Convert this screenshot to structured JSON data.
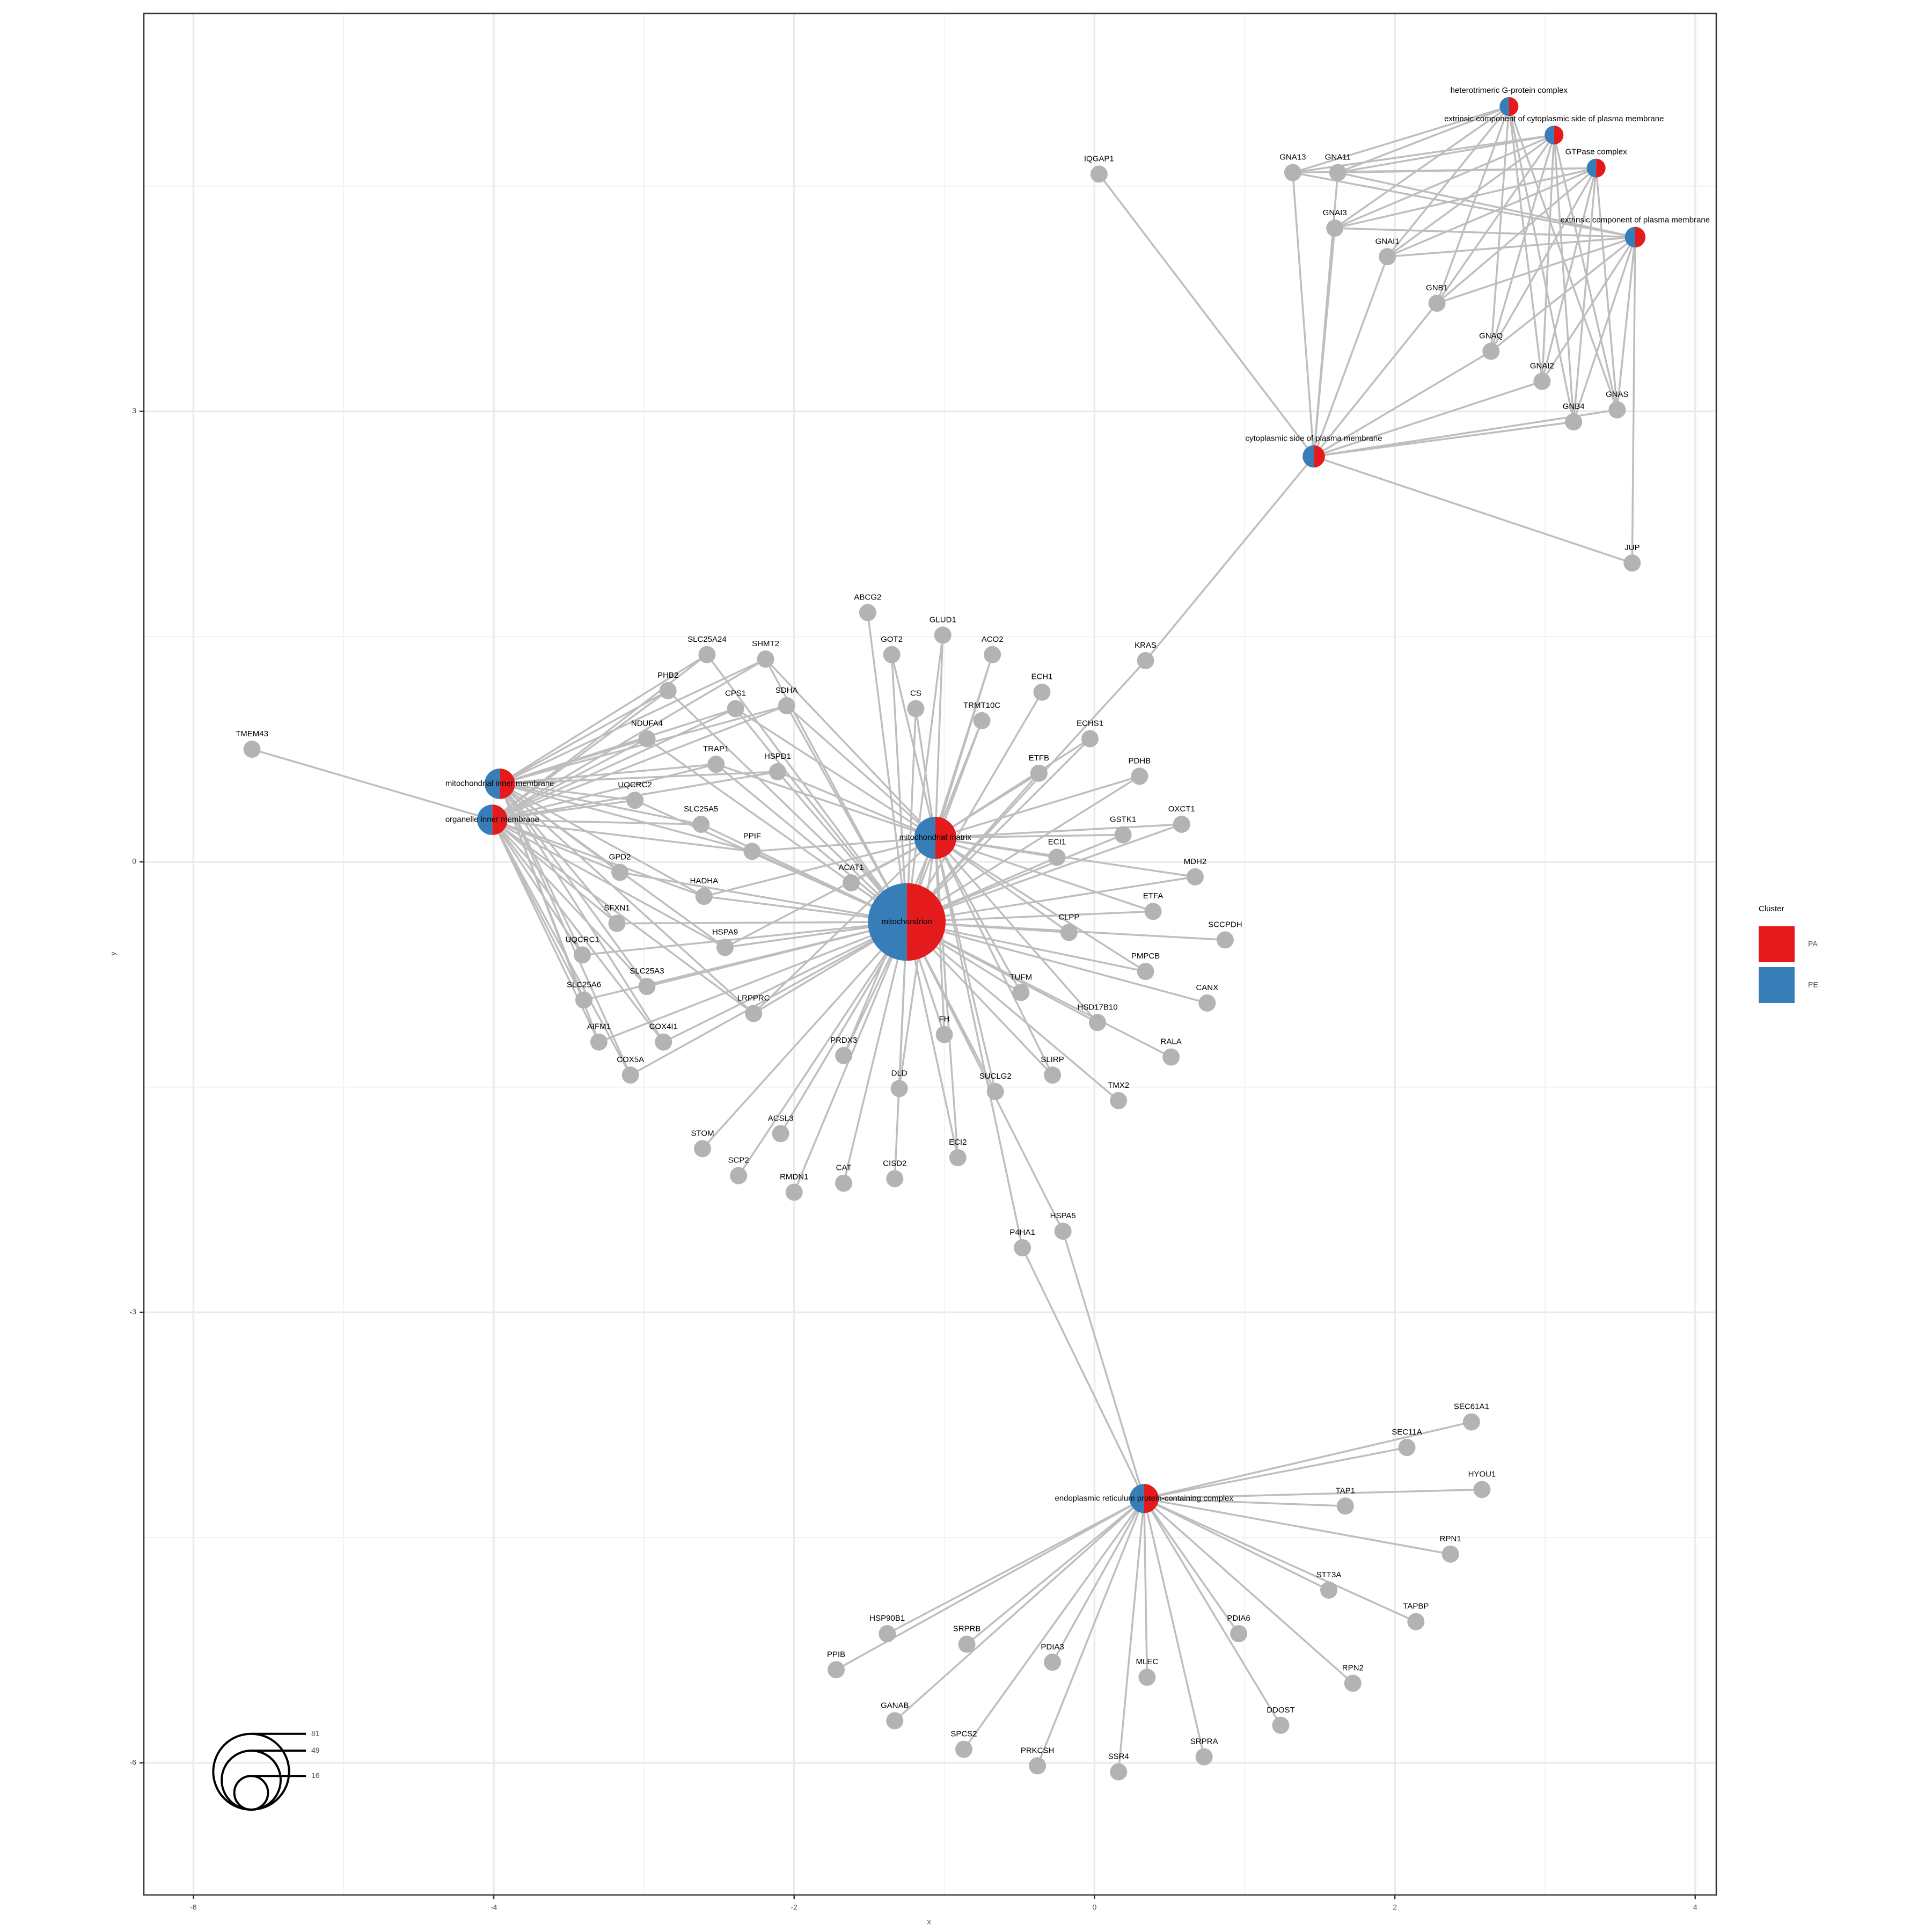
{
  "chart_data": {
    "type": "network",
    "x_label": "x",
    "y_label": "y",
    "xlim": [
      -6.33,
      4.14
    ],
    "ylim": [
      -6.88,
      5.65
    ],
    "xticks": [
      -6,
      -4,
      -2,
      0,
      2,
      4
    ],
    "yticks": [
      -6,
      -3,
      0,
      3
    ],
    "grid": true,
    "minor_grid": true,
    "legend_title": "Cluster",
    "series": [
      {
        "name": "PA",
        "color": "#E41A1C"
      },
      {
        "name": "PE",
        "color": "#377EB8"
      }
    ],
    "node_color": "#B3B3B3",
    "edge_color": "#BEBEBE",
    "size_legend": [
      81,
      49,
      16
    ],
    "categories": [
      {
        "label": "mitochondrion",
        "x": -1.25,
        "y": -0.4,
        "size": 85,
        "values": [
          50,
          50
        ],
        "links": [
          "SLC25A24",
          "SHMT2",
          "PHB2",
          "NDUFA4",
          "CPS1",
          "SDHA",
          "TRAP1",
          "HSPD1",
          "UQCRC2",
          "SLC25A5",
          "PPIF",
          "GPD2",
          "HADHA",
          "ACAT1",
          "SFXN1",
          "HSPA9",
          "UQCRC1",
          "SLC25A3",
          "SLC25A6",
          "LRPPRC",
          "COX4I1",
          "AIFM1",
          "COX5A",
          "ABCG2",
          "GOT2",
          "GLUD1",
          "ACO2",
          "CS",
          "TRMT10C",
          "ECH1",
          "ECHS1",
          "ETFB",
          "PDHB",
          "GSTK1",
          "OXCT1",
          "ECI1",
          "MDH2",
          "ETFA",
          "SCCPDH",
          "CLPP",
          "PMPCB",
          "TUFM",
          "CANX",
          "HSD17B10",
          "FH",
          "RALA",
          "SLIRP",
          "SUCLG2",
          "TMX2",
          "PRDX3",
          "DLD",
          "ECI2",
          "STOM",
          "ACSL3",
          "SCP2",
          "CAT",
          "CISD2",
          "RMDN1",
          "KRAS",
          "HSPA5"
        ]
      },
      {
        "label": "mitochondrial matrix",
        "x": -1.06,
        "y": 0.16,
        "size": 25,
        "values": [
          50,
          50
        ],
        "links": [
          "SHMT2",
          "CPS1",
          "SDHA",
          "TRAP1",
          "HSPD1",
          "HADHA",
          "HSPA9",
          "LRPPRC",
          "ACAT1",
          "PPIF",
          "GOT2",
          "GLUD1",
          "ACO2",
          "CS",
          "TRMT10C",
          "ECHS1",
          "ETFB",
          "PDHB",
          "GSTK1",
          "OXCT1",
          "ECI1",
          "MDH2",
          "ETFA",
          "CLPP",
          "PMPCB",
          "TUFM",
          "HSD17B10",
          "FH",
          "SLIRP",
          "SUCLG2",
          "PRDX3",
          "DLD",
          "ECI2",
          "P4HA1"
        ]
      },
      {
        "label": "mitochondrial inner membrane",
        "x": -3.96,
        "y": 0.52,
        "size": 13,
        "values": [
          50,
          50
        ],
        "links": [
          "SLC25A24",
          "SHMT2",
          "PHB2",
          "NDUFA4",
          "CPS1",
          "SDHA",
          "TRAP1",
          "HSPD1",
          "UQCRC2",
          "SLC25A5",
          "PPIF",
          "GPD2",
          "HADHA",
          "SFXN1",
          "HSPA9",
          "UQCRC1",
          "SLC25A3",
          "SLC25A6",
          "LRPPRC",
          "COX4I1",
          "AIFM1",
          "COX5A"
        ]
      },
      {
        "label": "organelle inner membrane",
        "x": -4.01,
        "y": 0.28,
        "size": 13,
        "values": [
          50,
          50
        ],
        "links": [
          "TMEM43",
          "SLC25A24",
          "SHMT2",
          "PHB2",
          "NDUFA4",
          "CPS1",
          "SDHA",
          "TRAP1",
          "HSPD1",
          "UQCRC2",
          "SLC25A5",
          "PPIF",
          "GPD2",
          "HADHA",
          "SFXN1",
          "HSPA9",
          "UQCRC1",
          "SLC25A3",
          "SLC25A6",
          "LRPPRC",
          "COX4I1",
          "AIFM1",
          "COX5A"
        ]
      },
      {
        "label": "cytoplasmic side of plasma membrane",
        "x": 1.46,
        "y": 2.7,
        "size": 7,
        "values": [
          50,
          50
        ],
        "links": [
          "IQGAP1",
          "KRAS",
          "JUP",
          "GNA13",
          "GNA11",
          "GNAI3",
          "GNAI1",
          "GNB1",
          "GNAQ",
          "GNAI2",
          "GNB4",
          "GNAS"
        ]
      },
      {
        "label": "heterotrimeric G-protein complex",
        "x": 2.76,
        "y": 5.03,
        "size": 5,
        "values": [
          50,
          50
        ],
        "links": [
          "GNA13",
          "GNA11",
          "GNAI3",
          "GNAI1",
          "GNB1",
          "GNAQ",
          "GNAI2",
          "GNB4",
          "GNAS"
        ]
      },
      {
        "label": "extrinsic component of cytoplasmic side of plasma membrane",
        "x": 3.06,
        "y": 4.84,
        "size": 5,
        "values": [
          50,
          50
        ],
        "links": [
          "GNA13",
          "GNA11",
          "GNAI3",
          "GNAI1",
          "GNB1",
          "GNAQ",
          "GNAI2",
          "GNB4",
          "GNAS"
        ]
      },
      {
        "label": "GTPase complex",
        "x": 3.34,
        "y": 4.62,
        "size": 5,
        "values": [
          50,
          50
        ],
        "links": [
          "GNA13",
          "GNA11",
          "GNAI3",
          "GNAI1",
          "GNB1",
          "GNAQ",
          "GNAI2",
          "GNB4",
          "GNAS"
        ]
      },
      {
        "label": "extrinsic component of plasma membrane",
        "x": 3.6,
        "y": 4.16,
        "size": 6,
        "values": [
          50,
          50
        ],
        "links": [
          "GNA13",
          "GNA11",
          "GNAI3",
          "GNAI1",
          "GNB1",
          "GNAQ",
          "GNAI2",
          "GNB4",
          "GNAS",
          "JUP"
        ]
      },
      {
        "label": "endoplasmic reticulum protein-containing complex",
        "x": 0.33,
        "y": -4.24,
        "size": 12,
        "values": [
          50,
          50
        ],
        "links": [
          "SEC11A",
          "SEC61A1",
          "HYOU1",
          "TAP1",
          "RPN1",
          "STT3A",
          "TAPBP",
          "RPN2",
          "DDOST",
          "PDIA6",
          "SRPRA",
          "MLEC",
          "SSR4",
          "PRKCSH",
          "PDIA3",
          "SPCS2",
          "SRPRB",
          "GANAB",
          "HSP90B1",
          "PPIB",
          "HSPA5",
          "P4HA1"
        ]
      }
    ],
    "genes": [
      {
        "label": "TMEM43",
        "x": -5.61,
        "y": 0.75
      },
      {
        "label": "SLC25A24",
        "x": -2.58,
        "y": 1.38
      },
      {
        "label": "SHMT2",
        "x": -2.19,
        "y": 1.35
      },
      {
        "label": "PHB2",
        "x": -2.84,
        "y": 1.14
      },
      {
        "label": "NDUFA4",
        "x": -2.98,
        "y": 0.82
      },
      {
        "label": "CPS1",
        "x": -2.39,
        "y": 1.02
      },
      {
        "label": "SDHA",
        "x": -2.05,
        "y": 1.04
      },
      {
        "label": "TRAP1",
        "x": -2.52,
        "y": 0.65
      },
      {
        "label": "HSPD1",
        "x": -2.11,
        "y": 0.6
      },
      {
        "label": "UQCRC2",
        "x": -3.06,
        "y": 0.41
      },
      {
        "label": "SLC25A5",
        "x": -2.62,
        "y": 0.25
      },
      {
        "label": "PPIF",
        "x": -2.28,
        "y": 0.07
      },
      {
        "label": "GPD2",
        "x": -3.16,
        "y": -0.07
      },
      {
        "label": "HADHA",
        "x": -2.6,
        "y": -0.23
      },
      {
        "label": "ACAT1",
        "x": -1.62,
        "y": -0.14
      },
      {
        "label": "SFXN1",
        "x": -3.18,
        "y": -0.41
      },
      {
        "label": "HSPA9",
        "x": -2.46,
        "y": -0.57
      },
      {
        "label": "UQCRC1",
        "x": -3.41,
        "y": -0.62
      },
      {
        "label": "SLC25A3",
        "x": -2.98,
        "y": -0.83
      },
      {
        "label": "SLC25A6",
        "x": -3.4,
        "y": -0.92
      },
      {
        "label": "LRPPRC",
        "x": -2.27,
        "y": -1.01
      },
      {
        "label": "COX4I1",
        "x": -2.87,
        "y": -1.2
      },
      {
        "label": "AIFM1",
        "x": -3.3,
        "y": -1.2
      },
      {
        "label": "COX5A",
        "x": -3.09,
        "y": -1.42
      },
      {
        "label": "ABCG2",
        "x": -1.51,
        "y": 1.66
      },
      {
        "label": "GOT2",
        "x": -1.35,
        "y": 1.38
      },
      {
        "label": "GLUD1",
        "x": -1.01,
        "y": 1.51
      },
      {
        "label": "ACO2",
        "x": -0.68,
        "y": 1.38
      },
      {
        "label": "CS",
        "x": -1.19,
        "y": 1.02
      },
      {
        "label": "TRMT10C",
        "x": -0.75,
        "y": 0.94
      },
      {
        "label": "ECH1",
        "x": -0.35,
        "y": 1.13
      },
      {
        "label": "ECHS1",
        "x": -0.03,
        "y": 0.82
      },
      {
        "label": "ETFB",
        "x": -0.37,
        "y": 0.59
      },
      {
        "label": "PDHB",
        "x": 0.3,
        "y": 0.57
      },
      {
        "label": "GSTK1",
        "x": 0.19,
        "y": 0.18
      },
      {
        "label": "OXCT1",
        "x": 0.58,
        "y": 0.25
      },
      {
        "label": "ECI1",
        "x": -0.25,
        "y": 0.03
      },
      {
        "label": "MDH2",
        "x": 0.67,
        "y": -0.1
      },
      {
        "label": "ETFA",
        "x": 0.39,
        "y": -0.33
      },
      {
        "label": "SCCPDH",
        "x": 0.87,
        "y": -0.52
      },
      {
        "label": "CLPP",
        "x": -0.17,
        "y": -0.47
      },
      {
        "label": "PMPCB",
        "x": 0.34,
        "y": -0.73
      },
      {
        "label": "TUFM",
        "x": -0.49,
        "y": -0.87
      },
      {
        "label": "CANX",
        "x": 0.75,
        "y": -0.94
      },
      {
        "label": "HSD17B10",
        "x": 0.02,
        "y": -1.07
      },
      {
        "label": "FH",
        "x": -1.0,
        "y": -1.15
      },
      {
        "label": "RALA",
        "x": 0.51,
        "y": -1.3
      },
      {
        "label": "SLIRP",
        "x": -0.28,
        "y": -1.42
      },
      {
        "label": "SUCLG2",
        "x": -0.66,
        "y": -1.53
      },
      {
        "label": "TMX2",
        "x": 0.16,
        "y": -1.59
      },
      {
        "label": "PRDX3",
        "x": -1.67,
        "y": -1.29
      },
      {
        "label": "DLD",
        "x": -1.3,
        "y": -1.51
      },
      {
        "label": "ECI2",
        "x": -0.91,
        "y": -1.97
      },
      {
        "label": "STOM",
        "x": -2.61,
        "y": -1.91
      },
      {
        "label": "ACSL3",
        "x": -2.09,
        "y": -1.81
      },
      {
        "label": "SCP2",
        "x": -2.37,
        "y": -2.09
      },
      {
        "label": "CAT",
        "x": -1.67,
        "y": -2.14
      },
      {
        "label": "CISD2",
        "x": -1.33,
        "y": -2.11
      },
      {
        "label": "RMDN1",
        "x": -2.0,
        "y": -2.2
      },
      {
        "label": "KRAS",
        "x": 0.34,
        "y": 1.34
      },
      {
        "label": "HSPA5",
        "x": -0.21,
        "y": -2.46
      },
      {
        "label": "P4HA1",
        "x": -0.48,
        "y": -2.57
      },
      {
        "label": "IQGAP1",
        "x": 0.03,
        "y": 4.58
      },
      {
        "label": "GNA13",
        "x": 1.32,
        "y": 4.59
      },
      {
        "label": "GNA11",
        "x": 1.62,
        "y": 4.59
      },
      {
        "label": "GNAI3",
        "x": 1.6,
        "y": 4.22
      },
      {
        "label": "GNAI1",
        "x": 1.95,
        "y": 4.03
      },
      {
        "label": "GNB1",
        "x": 2.28,
        "y": 3.72
      },
      {
        "label": "GNAQ",
        "x": 2.64,
        "y": 3.4
      },
      {
        "label": "GNAI2",
        "x": 2.98,
        "y": 3.2
      },
      {
        "label": "GNB4",
        "x": 3.19,
        "y": 2.93
      },
      {
        "label": "GNAS",
        "x": 3.48,
        "y": 3.01
      },
      {
        "label": "JUP",
        "x": 3.58,
        "y": 1.99
      },
      {
        "label": "SEC11A",
        "x": 2.08,
        "y": -3.9
      },
      {
        "label": "SEC61A1",
        "x": 2.51,
        "y": -3.73
      },
      {
        "label": "HYOU1",
        "x": 2.58,
        "y": -4.18
      },
      {
        "label": "TAP1",
        "x": 1.67,
        "y": -4.29
      },
      {
        "label": "RPN1",
        "x": 2.37,
        "y": -4.61
      },
      {
        "label": "STT3A",
        "x": 1.56,
        "y": -4.85
      },
      {
        "label": "TAPBP",
        "x": 2.14,
        "y": -5.06
      },
      {
        "label": "RPN2",
        "x": 1.72,
        "y": -5.47
      },
      {
        "label": "DDOST",
        "x": 1.24,
        "y": -5.75
      },
      {
        "label": "PDIA6",
        "x": 0.96,
        "y": -5.14
      },
      {
        "label": "SRPRA",
        "x": 0.73,
        "y": -5.96
      },
      {
        "label": "MLEC",
        "x": 0.35,
        "y": -5.43
      },
      {
        "label": "SSR4",
        "x": 0.16,
        "y": -6.06
      },
      {
        "label": "PRKCSH",
        "x": -0.38,
        "y": -6.02
      },
      {
        "label": "PDIA3",
        "x": -0.28,
        "y": -5.33
      },
      {
        "label": "SPCS2",
        "x": -0.87,
        "y": -5.91
      },
      {
        "label": "SRPRB",
        "x": -0.85,
        "y": -5.21
      },
      {
        "label": "GANAB",
        "x": -1.33,
        "y": -5.72
      },
      {
        "label": "HSP90B1",
        "x": -1.38,
        "y": -5.14
      },
      {
        "label": "PPIB",
        "x": -1.72,
        "y": -5.38
      }
    ]
  }
}
